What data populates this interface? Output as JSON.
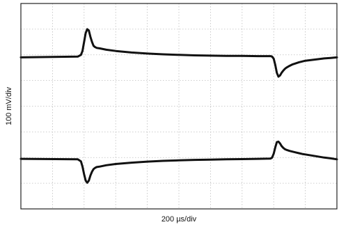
{
  "chart_data": {
    "type": "line",
    "title": "",
    "xlabel": "200 µs/div",
    "ylabel": "100 mV/div",
    "x_divisions": 10,
    "y_divisions": 8,
    "xlim": [
      0,
      10
    ],
    "ylim": [
      0,
      8
    ],
    "x_units": "div",
    "y_units": "div",
    "grid": true,
    "grid_style": "dotted",
    "legend": "none",
    "colors": {
      "trace": "#111111",
      "grid": "#bdbdbd",
      "frame": "#222222",
      "background": "#ffffff"
    },
    "series": [
      {
        "x": [
          0,
          1.8,
          1.9,
          1.95,
          2.0,
          2.05,
          2.1,
          2.15,
          2.2,
          2.25,
          2.3,
          2.35,
          2.4,
          2.5,
          2.7,
          3.0,
          3.5,
          4.0,
          4.5,
          5.0,
          5.5,
          6.0,
          6.5,
          7.0,
          7.5,
          7.9,
          7.95,
          8.0,
          8.05,
          8.1,
          8.15,
          8.2,
          8.25,
          8.3,
          8.35,
          8.4,
          8.5,
          8.6,
          8.7,
          8.8,
          8.9,
          9.0,
          9.2,
          9.4,
          9.6,
          9.8,
          10.0
        ],
        "y": [
          5.9,
          5.93,
          6.0,
          6.15,
          6.5,
          6.85,
          7.0,
          6.95,
          6.7,
          6.5,
          6.35,
          6.3,
          6.27,
          6.25,
          6.2,
          6.15,
          6.09,
          6.05,
          6.02,
          6.0,
          5.98,
          5.97,
          5.96,
          5.96,
          5.95,
          5.95,
          5.93,
          5.85,
          5.6,
          5.3,
          5.15,
          5.2,
          5.3,
          5.38,
          5.45,
          5.5,
          5.57,
          5.63,
          5.67,
          5.71,
          5.74,
          5.77,
          5.8,
          5.83,
          5.86,
          5.88,
          5.9
        ]
      },
      {
        "x": [
          0,
          1.8,
          1.9,
          1.95,
          2.0,
          2.05,
          2.1,
          2.15,
          2.2,
          2.25,
          2.3,
          2.35,
          2.4,
          2.5,
          2.7,
          3.0,
          3.5,
          4.0,
          4.5,
          5.0,
          5.5,
          6.0,
          6.5,
          7.0,
          7.5,
          7.9,
          7.95,
          8.0,
          8.05,
          8.1,
          8.15,
          8.2,
          8.25,
          8.3,
          8.35,
          8.4,
          8.5,
          8.6,
          8.7,
          8.8,
          8.9,
          9.0,
          9.2,
          9.4,
          9.6,
          9.8,
          10.0
        ],
        "y": [
          1.95,
          1.93,
          1.85,
          1.65,
          1.35,
          1.1,
          1.02,
          1.1,
          1.3,
          1.45,
          1.55,
          1.6,
          1.63,
          1.65,
          1.7,
          1.75,
          1.8,
          1.84,
          1.87,
          1.89,
          1.91,
          1.92,
          1.93,
          1.94,
          1.95,
          1.96,
          2.0,
          2.15,
          2.4,
          2.6,
          2.62,
          2.55,
          2.45,
          2.38,
          2.33,
          2.3,
          2.26,
          2.23,
          2.2,
          2.17,
          2.14,
          2.12,
          2.08,
          2.04,
          2.0,
          1.97,
          1.93
        ]
      }
    ]
  }
}
